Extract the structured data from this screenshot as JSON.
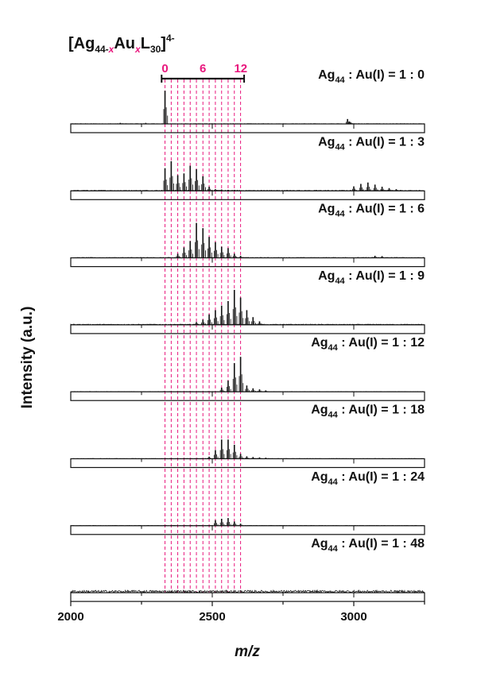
{
  "chart_data": {
    "type": "line",
    "title_formula": {
      "open": "[Ag",
      "sub1": "44-",
      "sub1_x": "x",
      "mid": "Au",
      "sub2_x": "x",
      "l": "L",
      "sub3": "30",
      "close": "]",
      "charge": "4-"
    },
    "xlabel": "m/z",
    "ylabel": "Intensity (a.u.)",
    "xlim": [
      2000,
      3250
    ],
    "xticks": [
      2000,
      2500,
      3000
    ],
    "dopant_scale": {
      "labels": [
        "0",
        "6",
        "12"
      ],
      "label_values": [
        0,
        6,
        12
      ],
      "range": [
        0,
        12
      ],
      "x_at_0": 2333,
      "dx_per_au": 22.3
    },
    "reference_line_x": [
      2333,
      2355,
      2378,
      2400,
      2422,
      2444,
      2467,
      2489,
      2511,
      2533,
      2556,
      2578,
      2600
    ],
    "highlight_color": "#e8177d",
    "panels": [
      {
        "prefix": "Ag",
        "sub": "44",
        "ratio": " : Au(I) = 1 : 0",
        "peaks": [
          [
            2333,
            0.95
          ],
          [
            2265,
            0.03
          ],
          [
            2175,
            0.03
          ],
          [
            2978,
            0.14
          ],
          [
            2985,
            0.07
          ],
          [
            2990,
            0.04
          ]
        ],
        "noise": 0.01
      },
      {
        "prefix": "Ag",
        "sub": "44",
        "ratio": " : Au(I) = 1 : 3",
        "peaks": [
          [
            2333,
            0.65
          ],
          [
            2355,
            0.85
          ],
          [
            2378,
            0.45
          ],
          [
            2400,
            0.5
          ],
          [
            2422,
            0.72
          ],
          [
            2444,
            0.62
          ],
          [
            2467,
            0.42
          ],
          [
            2489,
            0.12
          ],
          [
            2511,
            0.05
          ],
          [
            2533,
            0.04
          ],
          [
            2556,
            0.03
          ],
          [
            2578,
            0.03
          ],
          [
            3000,
            0.13
          ],
          [
            3025,
            0.2
          ],
          [
            3050,
            0.24
          ],
          [
            3075,
            0.18
          ],
          [
            3100,
            0.12
          ],
          [
            3125,
            0.08
          ],
          [
            3150,
            0.05
          ]
        ],
        "noise": 0.02
      },
      {
        "prefix": "Ag",
        "sub": "44",
        "ratio": " : Au(I) = 1 : 6",
        "peaks": [
          [
            2378,
            0.12
          ],
          [
            2400,
            0.3
          ],
          [
            2422,
            0.48
          ],
          [
            2444,
            1.0
          ],
          [
            2467,
            0.85
          ],
          [
            2489,
            0.6
          ],
          [
            2511,
            0.45
          ],
          [
            2533,
            0.32
          ],
          [
            2556,
            0.28
          ],
          [
            2578,
            0.12
          ],
          [
            2600,
            0.06
          ],
          [
            3075,
            0.06
          ],
          [
            3100,
            0.05
          ]
        ],
        "noise": 0.015
      },
      {
        "prefix": "Ag",
        "sub": "44",
        "ratio": " : Au(I) = 1 : 9",
        "peaks": [
          [
            2444,
            0.08
          ],
          [
            2467,
            0.15
          ],
          [
            2489,
            0.3
          ],
          [
            2511,
            0.42
          ],
          [
            2533,
            0.55
          ],
          [
            2556,
            0.68
          ],
          [
            2578,
            1.0
          ],
          [
            2600,
            0.78
          ],
          [
            2622,
            0.42
          ],
          [
            2644,
            0.22
          ],
          [
            2667,
            0.1
          ]
        ],
        "noise": 0.02
      },
      {
        "prefix": "Ag",
        "sub": "44",
        "ratio": " : Au(I) = 1 : 12",
        "peaks": [
          [
            2533,
            0.12
          ],
          [
            2556,
            0.32
          ],
          [
            2578,
            0.82
          ],
          [
            2600,
            1.0
          ],
          [
            2622,
            0.18
          ],
          [
            2644,
            0.1
          ],
          [
            2667,
            0.07
          ],
          [
            2689,
            0.04
          ]
        ],
        "noise": 0.01
      },
      {
        "prefix": "Ag",
        "sub": "44",
        "ratio": " : Au(I) = 1 : 18",
        "peaks": [
          [
            2489,
            0.06
          ],
          [
            2511,
            0.25
          ],
          [
            2533,
            0.55
          ],
          [
            2556,
            0.55
          ],
          [
            2578,
            0.4
          ],
          [
            2600,
            0.14
          ],
          [
            2622,
            0.07
          ],
          [
            2644,
            0.05
          ],
          [
            2667,
            0.04
          ],
          [
            2689,
            0.03
          ]
        ],
        "noise": 0.01
      },
      {
        "prefix": "Ag",
        "sub": "44",
        "ratio": " : Au(I) = 1 : 24",
        "peaks": [
          [
            2511,
            0.16
          ],
          [
            2533,
            0.2
          ],
          [
            2556,
            0.22
          ],
          [
            2578,
            0.12
          ],
          [
            2600,
            0.06
          ]
        ],
        "noise": 0.01
      },
      {
        "prefix": "Ag",
        "sub": "44",
        "ratio": " : Au(I) = 1 : 48",
        "peaks": [],
        "noise": 0.07
      }
    ]
  }
}
